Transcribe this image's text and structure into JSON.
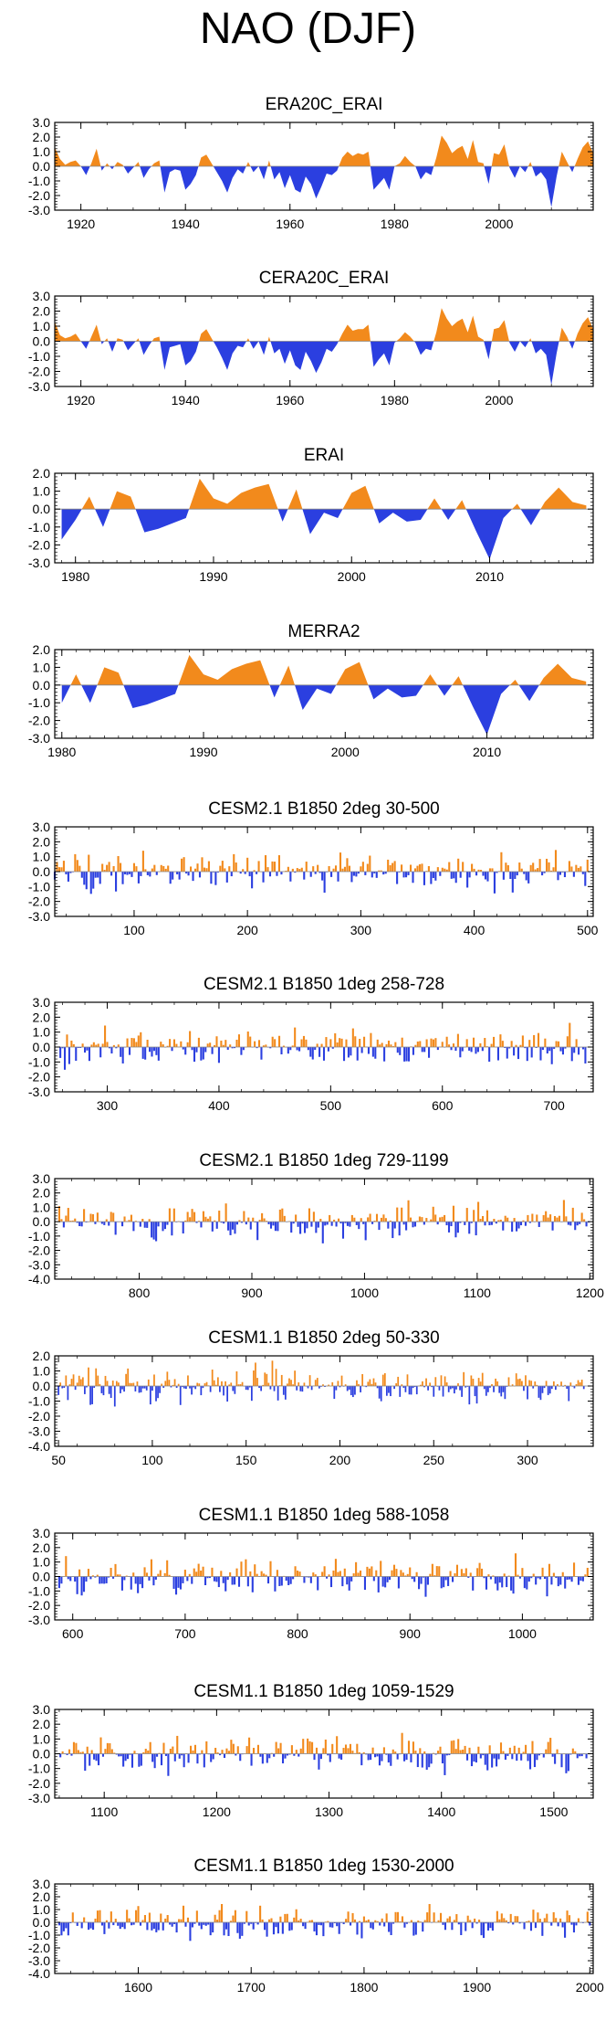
{
  "figure": {
    "title": "NAO (DJF)"
  },
  "colors": {
    "positive": "#f28a1c",
    "negative": "#2b3fe0",
    "axis": "#000000",
    "zero_line": "#888888"
  },
  "chart_data": [
    {
      "type": "area",
      "title": "ERA20C_ERAI",
      "start": 1915,
      "end": 2018,
      "seed": 11,
      "amp": 1.0,
      "step": 1,
      "xlim": [
        1915,
        2018
      ],
      "ylim": [
        -3.0,
        3.0
      ],
      "xticks": [
        1920,
        1940,
        1960,
        1980,
        2000
      ],
      "yticks": [
        "3.0",
        "2.0",
        "1.0",
        "0.0",
        "-1.0",
        "-2.0",
        "-3.0"
      ],
      "values": [
        1.3,
        0.5,
        0.1,
        0.3,
        0.4,
        0.0,
        -0.6,
        0.2,
        1.2,
        -0.3,
        0.2,
        -0.2,
        0.3,
        0.1,
        -0.5,
        -0.1,
        0.3,
        -0.8,
        -0.2,
        0.2,
        0.4,
        -1.8,
        -0.4,
        -0.2,
        -0.3,
        -1.6,
        -1.2,
        -0.6,
        0.6,
        0.8,
        0.2,
        -0.4,
        -1.0,
        -1.8,
        -0.8,
        -0.2,
        -0.5,
        0.3,
        -0.4,
        0.0,
        -0.9,
        0.4,
        -0.9,
        -0.4,
        -1.5,
        -0.6,
        -1.6,
        -1.8,
        -0.7,
        -1.2,
        -2.2,
        -1.4,
        -0.5,
        -0.6,
        -0.3,
        0.6,
        1.0,
        0.7,
        0.9,
        0.8,
        1.0,
        -1.6,
        -1.2,
        -0.8,
        -1.6,
        0.0,
        0.2,
        0.7,
        0.3,
        0.0,
        -0.9,
        -0.4,
        -0.6,
        0.6,
        2.1,
        1.6,
        0.9,
        1.2,
        1.4,
        0.5,
        1.8,
        0.3,
        0.2,
        -1.2,
        0.9,
        0.8,
        1.5,
        -0.1,
        -0.8,
        0.0,
        -0.4,
        0.3,
        -0.7,
        -0.4,
        -0.9,
        -2.8,
        -0.7,
        1.0,
        0.3,
        -0.4,
        0.5,
        1.3,
        1.7,
        0.9
      ]
    },
    {
      "type": "area",
      "title": "CERA20C_ERAI",
      "start": 1915,
      "end": 2018,
      "seed": 12,
      "amp": 1.0,
      "step": 1,
      "xlim": [
        1915,
        2018
      ],
      "ylim": [
        -3.0,
        3.0
      ],
      "xticks": [
        1920,
        1940,
        1960,
        1980,
        2000
      ],
      "yticks": [
        "3.0",
        "2.0",
        "1.0",
        "0.0",
        "-1.0",
        "-2.0",
        "-3.0"
      ],
      "values": [
        1.3,
        0.4,
        0.2,
        0.3,
        0.5,
        0.0,
        -0.5,
        0.3,
        1.1,
        -0.2,
        0.2,
        -0.7,
        0.2,
        0.1,
        -0.6,
        -0.2,
        0.2,
        -0.9,
        -0.3,
        0.2,
        0.3,
        -1.9,
        -0.4,
        -0.3,
        -0.2,
        -1.6,
        -1.3,
        -0.7,
        0.5,
        0.8,
        0.2,
        -0.4,
        -1.1,
        -1.9,
        -0.8,
        -0.3,
        -0.4,
        0.2,
        -0.5,
        0.0,
        -0.9,
        0.3,
        -0.8,
        -0.5,
        -1.5,
        -0.6,
        -1.6,
        -1.9,
        -0.7,
        -1.3,
        -2.1,
        -1.4,
        -0.5,
        -0.7,
        -0.2,
        0.5,
        1.1,
        0.7,
        0.8,
        0.8,
        1.1,
        -1.7,
        -1.2,
        -0.8,
        -1.6,
        -0.1,
        0.2,
        0.6,
        0.3,
        -0.1,
        -0.9,
        -0.5,
        -0.6,
        0.6,
        2.2,
        1.5,
        1.0,
        1.3,
        1.5,
        0.6,
        1.7,
        0.3,
        0.1,
        -1.2,
        0.8,
        0.9,
        1.4,
        -0.1,
        -0.7,
        0.0,
        -0.4,
        0.2,
        -0.8,
        -0.5,
        -0.9,
        -2.9,
        -0.8,
        0.9,
        0.3,
        -0.5,
        0.5,
        1.2,
        1.6,
        0.8
      ]
    },
    {
      "type": "area",
      "title": "ERAI",
      "start": 1979,
      "end": 2017,
      "seed": 13,
      "amp": 1.0,
      "step": 1,
      "xlim": [
        1978.5,
        2017.5
      ],
      "ylim": [
        -3.0,
        2.0
      ],
      "xticks": [
        1980,
        1990,
        2000,
        2010
      ],
      "yticks": [
        "2.0",
        "1.0",
        "0.0",
        "-1.0",
        "-2.0",
        "-3.0"
      ],
      "values": [
        -1.7,
        -0.6,
        0.7,
        -1.0,
        1.0,
        0.7,
        -1.3,
        -1.1,
        -0.8,
        -0.5,
        1.7,
        0.6,
        0.3,
        0.9,
        1.2,
        1.4,
        -0.7,
        1.1,
        -1.4,
        -0.2,
        -0.5,
        0.9,
        1.3,
        -0.8,
        -0.2,
        -0.7,
        -0.6,
        0.6,
        -0.6,
        0.5,
        -1.2,
        -2.8,
        -0.5,
        0.3,
        -0.9,
        0.4,
        1.2,
        0.4,
        0.2
      ]
    },
    {
      "type": "area",
      "title": "MERRA2",
      "start": 1980,
      "end": 2017,
      "seed": 14,
      "amp": 1.0,
      "step": 1,
      "xlim": [
        1979.5,
        2017.5
      ],
      "ylim": [
        -3.0,
        2.0
      ],
      "xticks": [
        1980,
        1990,
        2000,
        2010
      ],
      "yticks": [
        "2.0",
        "1.0",
        "0.0",
        "-1.0",
        "-2.0",
        "-3.0"
      ],
      "values": [
        -1.0,
        0.6,
        -1.0,
        1.0,
        0.7,
        -1.3,
        -1.1,
        -0.8,
        -0.5,
        1.7,
        0.6,
        0.3,
        0.9,
        1.2,
        1.4,
        -0.7,
        1.1,
        -1.4,
        -0.2,
        -0.5,
        0.9,
        1.3,
        -0.8,
        -0.2,
        -0.7,
        -0.6,
        0.6,
        -0.6,
        0.5,
        -1.2,
        -2.8,
        -0.5,
        0.3,
        -0.9,
        0.4,
        1.2,
        0.4,
        0.2
      ]
    },
    {
      "type": "bar",
      "title": "CESM2.1 B1850 2deg 30-500",
      "start": 30,
      "end": 500,
      "seed": 21,
      "amp": 1.05,
      "step": 2,
      "xlim": [
        30,
        505
      ],
      "ylim": [
        -3.0,
        3.0
      ],
      "xticks": [
        100,
        200,
        300,
        400,
        500
      ],
      "yticks": [
        "3.0",
        "2.0",
        "1.0",
        "0.0",
        "-1.0",
        "-2.0",
        "-3.0"
      ],
      "values": []
    },
    {
      "type": "bar",
      "title": "CESM2.1 B1850 1deg 258-728",
      "start": 258,
      "end": 728,
      "seed": 22,
      "amp": 1.05,
      "step": 2,
      "xlim": [
        253,
        735
      ],
      "ylim": [
        -3.0,
        3.0
      ],
      "xticks": [
        300,
        400,
        500,
        600,
        700
      ],
      "yticks": [
        "3.0",
        "2.0",
        "1.0",
        "0.0",
        "-1.0",
        "-2.0",
        "-3.0"
      ],
      "values": []
    },
    {
      "type": "bar",
      "title": "CESM2.1 B1850 1deg 729-1199",
      "start": 729,
      "end": 1199,
      "seed": 23,
      "amp": 1.1,
      "step": 2,
      "xlim": [
        725,
        1203
      ],
      "ylim": [
        -4.0,
        3.0
      ],
      "xticks": [
        800,
        900,
        1000,
        1100,
        1200
      ],
      "yticks": [
        "3.0",
        "2.0",
        "1.0",
        "0.0",
        "-1.0",
        "-2.0",
        "-3.0",
        "-4.0"
      ],
      "values": []
    },
    {
      "type": "bar",
      "title": "CESM1.1 B1850 2deg 50-330",
      "start": 50,
      "end": 330,
      "seed": 31,
      "amp": 1.05,
      "step": 1,
      "xlim": [
        48,
        335
      ],
      "ylim": [
        -4.0,
        2.0
      ],
      "xticks": [
        50,
        100,
        150,
        200,
        250,
        300
      ],
      "yticks": [
        "2.0",
        "1.0",
        "0.0",
        "-1.0",
        "-2.0",
        "-3.0",
        "-4.0"
      ],
      "values": []
    },
    {
      "type": "bar",
      "title": "CESM1.1 B1850 1deg 588-1058",
      "start": 588,
      "end": 1058,
      "seed": 32,
      "amp": 1.05,
      "step": 2,
      "xlim": [
        584,
        1063
      ],
      "ylim": [
        -3.0,
        3.0
      ],
      "xticks": [
        600,
        700,
        800,
        900,
        1000
      ],
      "yticks": [
        "3.0",
        "2.0",
        "1.0",
        "0.0",
        "-1.0",
        "-2.0",
        "-3.0"
      ],
      "values": []
    },
    {
      "type": "bar",
      "title": "CESM1.1 B1850 1deg 1059-1529",
      "start": 1059,
      "end": 1529,
      "seed": 33,
      "amp": 1.05,
      "step": 2,
      "xlim": [
        1056,
        1535
      ],
      "ylim": [
        -3.0,
        3.0
      ],
      "xticks": [
        1100,
        1200,
        1300,
        1400,
        1500
      ],
      "yticks": [
        "3.0",
        "2.0",
        "1.0",
        "0.0",
        "-1.0",
        "-2.0",
        "-3.0"
      ],
      "values": []
    },
    {
      "type": "bar",
      "title": "CESM1.1 B1850 1deg 1530-2000",
      "start": 1530,
      "end": 2000,
      "seed": 34,
      "amp": 1.1,
      "step": 2,
      "xlim": [
        1526,
        2003
      ],
      "ylim": [
        -4.0,
        3.0
      ],
      "xticks": [
        1600,
        1700,
        1800,
        1900,
        2000
      ],
      "yticks": [
        "3.0",
        "2.0",
        "1.0",
        "0.0",
        "-1.0",
        "-2.0",
        "-3.0",
        "-4.0"
      ],
      "values": []
    }
  ]
}
